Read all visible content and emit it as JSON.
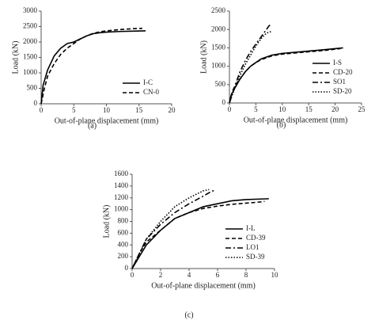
{
  "chart_data": [
    {
      "type": "line",
      "label": "(a)",
      "xlabel": "Out-of-plane displacement (mm)",
      "ylabel": "Load (kN)",
      "xlim": [
        0,
        20
      ],
      "xticks": [
        0,
        5,
        10,
        15,
        20
      ],
      "ylim": [
        0,
        3000
      ],
      "yticks": [
        0,
        500,
        1000,
        1500,
        2000,
        2500,
        3000
      ],
      "legend": "lower right",
      "series": [
        {
          "name": "I-C",
          "color": "#000000",
          "dash": "solid",
          "x": [
            0,
            0.3,
            1,
            2,
            3,
            4,
            5,
            6,
            7,
            8,
            9,
            10,
            12,
            14,
            16
          ],
          "values": [
            0,
            600,
            1100,
            1550,
            1800,
            1950,
            2000,
            2100,
            2200,
            2270,
            2300,
            2320,
            2340,
            2350,
            2360
          ]
        },
        {
          "name": "CN-0",
          "color": "#000000",
          "dash": "dashed",
          "x": [
            0,
            0.5,
            1,
            2,
            3,
            4,
            5,
            6,
            7,
            8,
            9,
            10,
            12,
            14,
            15.5
          ],
          "values": [
            0,
            500,
            900,
            1300,
            1600,
            1800,
            1950,
            2100,
            2200,
            2280,
            2330,
            2360,
            2400,
            2430,
            2440
          ]
        }
      ]
    },
    {
      "type": "line",
      "label": "(b)",
      "xlabel": "Out-of-plane displacement (mm)",
      "ylabel": "Load (kN)",
      "xlim": [
        0,
        25
      ],
      "xticks": [
        0,
        5,
        10,
        15,
        20,
        25
      ],
      "ylim": [
        0,
        2500
      ],
      "yticks": [
        0,
        500,
        1000,
        1500,
        2000,
        2500
      ],
      "legend": "lower right",
      "series": [
        {
          "name": "I-S",
          "color": "#000000",
          "dash": "solid",
          "x": [
            0,
            0.3,
            1,
            2,
            3,
            4,
            5,
            6,
            8,
            10,
            14,
            18,
            21.5
          ],
          "values": [
            0,
            200,
            400,
            650,
            850,
            1000,
            1100,
            1200,
            1300,
            1350,
            1400,
            1450,
            1500
          ]
        },
        {
          "name": "CD-20",
          "color": "#000000",
          "dash": "dashed",
          "x": [
            0,
            0.5,
            1,
            2,
            3,
            4,
            5,
            6,
            8,
            10,
            14,
            18,
            21
          ],
          "values": [
            0,
            300,
            450,
            650,
            850,
            1000,
            1100,
            1180,
            1280,
            1330,
            1380,
            1430,
            1480
          ]
        },
        {
          "name": "SO1",
          "color": "#000000",
          "dash": "dashdot",
          "x": [
            0,
            1,
            2,
            3,
            4,
            5,
            6,
            7,
            7.5,
            7.8
          ],
          "values": [
            0,
            450,
            850,
            1150,
            1400,
            1600,
            1800,
            2000,
            2100,
            2130
          ]
        },
        {
          "name": "SD-20",
          "color": "#000000",
          "dash": "dotted",
          "x": [
            0,
            1,
            2,
            3,
            4,
            5,
            6,
            7,
            8
          ],
          "values": [
            0,
            400,
            750,
            1050,
            1300,
            1550,
            1750,
            1900,
            1950
          ]
        }
      ]
    },
    {
      "type": "line",
      "label": "(c)",
      "xlabel": "Out-of-plane displacement (mm)",
      "ylabel": "Load (kN)",
      "xlim": [
        0,
        10
      ],
      "xticks": [
        0,
        2,
        4,
        6,
        8,
        10
      ],
      "ylim": [
        0,
        1600
      ],
      "yticks": [
        0,
        200,
        400,
        600,
        800,
        1000,
        1200,
        1400,
        1600
      ],
      "legend": "lower right",
      "series": [
        {
          "name": "I-L",
          "color": "#000000",
          "dash": "solid",
          "x": [
            0,
            0.5,
            1,
            2,
            3,
            4,
            5,
            6,
            7,
            8,
            9,
            9.6
          ],
          "values": [
            0,
            200,
            400,
            650,
            850,
            950,
            1050,
            1100,
            1150,
            1170,
            1180,
            1185
          ]
        },
        {
          "name": "CD-39",
          "color": "#000000",
          "dash": "dashed",
          "x": [
            0,
            0.5,
            1,
            2,
            3,
            4,
            5,
            6,
            7,
            8,
            9,
            9.3
          ],
          "values": [
            0,
            250,
            450,
            650,
            850,
            950,
            1020,
            1060,
            1090,
            1110,
            1130,
            1140
          ]
        },
        {
          "name": "LO1",
          "color": "#000000",
          "dash": "dashdot",
          "x": [
            0,
            1,
            2,
            3,
            4,
            5,
            5.5,
            5.8
          ],
          "values": [
            0,
            500,
            750,
            950,
            1100,
            1230,
            1300,
            1330
          ]
        },
        {
          "name": "SD-39",
          "color": "#000000",
          "dash": "dotted",
          "x": [
            0,
            1,
            2,
            3,
            4,
            5,
            5.4
          ],
          "values": [
            0,
            500,
            800,
            1050,
            1200,
            1320,
            1340
          ]
        }
      ]
    }
  ]
}
